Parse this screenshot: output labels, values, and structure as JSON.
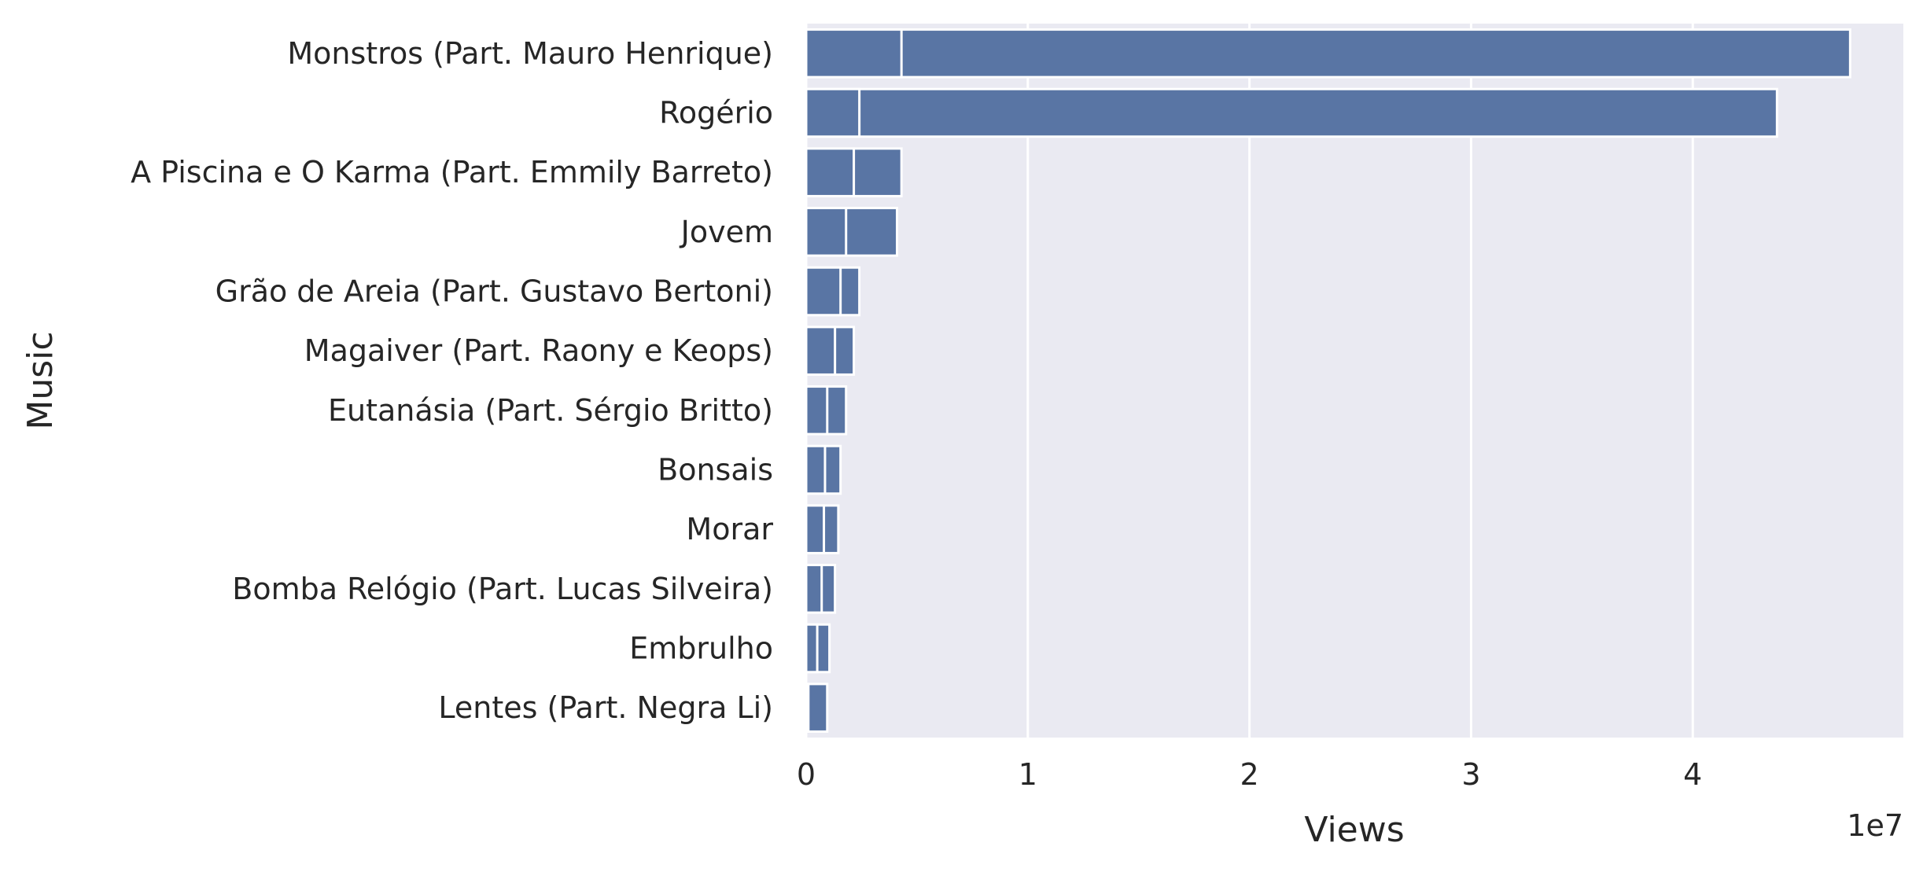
{
  "chart_data": {
    "type": "bar",
    "orientation": "horizontal",
    "categories": [
      "Monstros (Part. Mauro Henrique)",
      "Rogério",
      "A Piscina e O Karma (Part. Emmily Barreto)",
      "Jovem",
      "Grão de Areia (Part. Gustavo Bertoni)",
      "Magaiver (Part. Raony e Keops)",
      "Eutanásia (Part. Sérgio Britto)",
      "Bonsais",
      "Morar",
      "Bomba Relógio (Part. Lucas Silveira)",
      "Embrulho",
      "Lentes (Part. Negra Li)"
    ],
    "series": [
      {
        "values": [
          47100000,
          43800000,
          4300000,
          4100000,
          2400000,
          2150000,
          1800000,
          1550000,
          1450000,
          1300000,
          1050000,
          950000
        ]
      },
      {
        "values": [
          4300000,
          2400000,
          2150000,
          1800000,
          1550000,
          1300000,
          950000,
          850000,
          800000,
          700000,
          500000,
          100000
        ]
      }
    ],
    "overlay": true,
    "xlabel": "Views",
    "ylabel": "Music",
    "xlim": [
      0,
      49500000
    ],
    "xticks": [
      0,
      10000000,
      20000000,
      30000000,
      40000000
    ],
    "xtick_labels": [
      "0",
      "1",
      "2",
      "3",
      "4"
    ],
    "x_offset_label": "1e7",
    "grid": true,
    "background_color": "#eaeaf2",
    "grid_color": "#ffffff",
    "bar_color": "#5975a4",
    "bar_edge_color": "#ffffff",
    "text_color": "#262626"
  }
}
